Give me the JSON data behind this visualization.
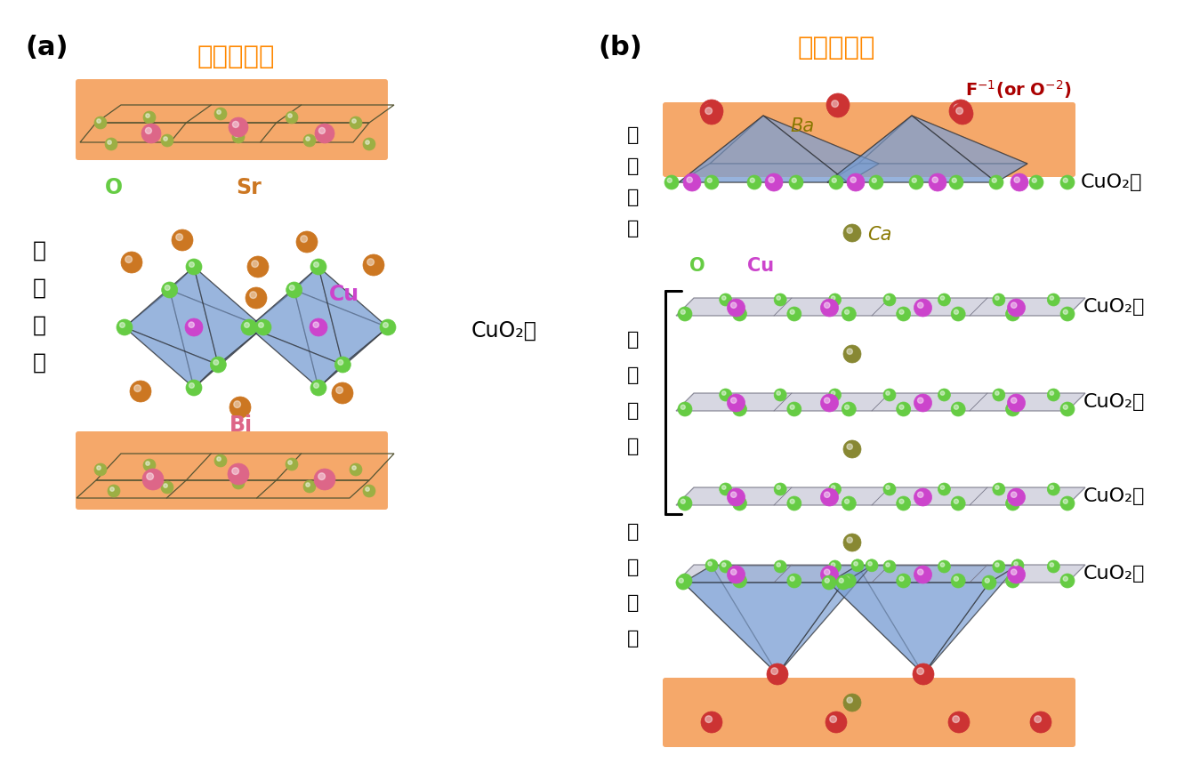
{
  "bg_color": "#ffffff",
  "orange_bg": "#F5A86A",
  "blue_poly": "#7B9FD4",
  "o_color": "#66CC44",
  "sr_color": "#CC7722",
  "cu_color": "#CC44CC",
  "bi_color": "#DD6688",
  "ba_color": "#CC3333",
  "ca_color": "#888833",
  "label_a": "(a)",
  "label_b": "(b)",
  "title_ja": "電荷供給層",
  "title_color": "#FF8800",
  "cuo2_label": "CuO₂面",
  "o_label": "O",
  "sr_label": "Sr",
  "cu_label": "Cu",
  "bi_label": "Bi",
  "ba_label": "Ba",
  "ca_label": "Ca",
  "f_label": "F⁻¹(or O⁻²)",
  "f_color": "#AA0000",
  "disorder_label_chars": [
    "乱",
    "れ",
    "た",
    "面"
  ],
  "clean_label_chars": [
    "紺",
    "麗",
    "な",
    "面"
  ],
  "o_label_color": "#66CC44",
  "cu_label_color": "#CC44CC",
  "ca_label_color": "#887700",
  "ba_label_color": "#887700",
  "line_color": "#222222",
  "grid_line_color": "#444444"
}
